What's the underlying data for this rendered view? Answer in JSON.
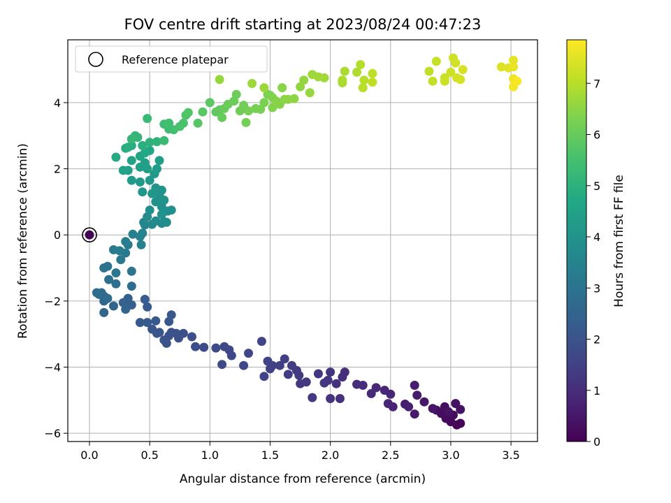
{
  "chart_data": {
    "type": "scatter",
    "title": "FOV centre drift starting at 2023/08/24 00:47:23",
    "xlabel": "Angular distance from reference (arcmin)",
    "ylabel": "Rotation from reference (arcmin)",
    "xlim": [
      -0.18,
      3.72
    ],
    "ylim": [
      -6.25,
      5.9
    ],
    "xticks": [
      "0.0",
      "0.5",
      "1.0",
      "1.5",
      "2.0",
      "2.5",
      "3.0",
      "3.5"
    ],
    "xtick_values": [
      0,
      0.5,
      1.0,
      1.5,
      2.0,
      2.5,
      3.0,
      3.5
    ],
    "yticks": [
      "−6",
      "−4",
      "−2",
      "0",
      "2",
      "4"
    ],
    "ytick_values": [
      -6,
      -4,
      -2,
      0,
      2,
      4
    ],
    "grid": true,
    "legend": {
      "position": "top-left",
      "label": "Reference platepar"
    },
    "colorbar": {
      "label": "Hours from first FF file",
      "range": [
        0,
        7.85
      ],
      "ticks": [
        "0",
        "1",
        "2",
        "3",
        "4",
        "5",
        "6",
        "7"
      ],
      "tick_values": [
        0,
        1,
        2,
        3,
        4,
        5,
        6,
        7
      ],
      "colormap": "viridis"
    },
    "reference_point": {
      "x": 0.0,
      "y": 0.0
    },
    "series": [
      {
        "points": [
          [
            0.0,
            0.0,
            0.0
          ],
          [
            3.05,
            -5.75,
            0.1
          ],
          [
            3.08,
            -5.7,
            0.12
          ],
          [
            3.0,
            -5.65,
            0.15
          ],
          [
            2.96,
            -5.55,
            0.2
          ],
          [
            3.02,
            -5.45,
            0.22
          ],
          [
            2.92,
            -5.4,
            0.25
          ],
          [
            2.88,
            -5.3,
            0.3
          ],
          [
            2.95,
            -5.2,
            0.32
          ],
          [
            3.04,
            -5.1,
            0.35
          ],
          [
            3.08,
            -5.28,
            0.38
          ],
          [
            2.98,
            -5.35,
            0.4
          ],
          [
            2.85,
            -5.25,
            0.45
          ],
          [
            2.78,
            -5.05,
            0.5
          ],
          [
            2.7,
            -5.42,
            0.55
          ],
          [
            2.72,
            -4.85,
            0.6
          ],
          [
            2.7,
            -4.55,
            0.62
          ],
          [
            2.62,
            -5.12,
            0.65
          ],
          [
            2.65,
            -5.2,
            0.7
          ],
          [
            2.52,
            -5.2,
            0.75
          ],
          [
            2.5,
            -4.82,
            0.8
          ],
          [
            2.48,
            -5.1,
            0.82
          ],
          [
            2.45,
            -4.7,
            0.85
          ],
          [
            2.38,
            -4.62,
            0.9
          ],
          [
            2.34,
            -4.8,
            0.95
          ],
          [
            2.27,
            -4.55,
            1.0
          ],
          [
            2.22,
            -4.52,
            1.02
          ],
          [
            2.12,
            -4.15,
            1.05
          ],
          [
            2.1,
            -4.3,
            1.08
          ],
          [
            2.08,
            -4.95,
            1.1
          ],
          [
            2.05,
            -4.5,
            1.12
          ],
          [
            2.0,
            -4.95,
            1.15
          ],
          [
            2.0,
            -4.15,
            1.18
          ],
          [
            1.98,
            -4.4,
            1.2
          ],
          [
            1.95,
            -4.48,
            1.22
          ],
          [
            1.9,
            -4.2,
            1.25
          ],
          [
            1.85,
            -4.92,
            1.28
          ],
          [
            1.8,
            -4.45,
            1.3
          ],
          [
            1.75,
            -4.5,
            1.32
          ],
          [
            1.74,
            -4.25,
            1.35
          ],
          [
            1.72,
            -4.1,
            1.38
          ],
          [
            1.68,
            -3.95,
            1.4
          ],
          [
            1.65,
            -4.22,
            1.42
          ],
          [
            1.62,
            -3.75,
            1.45
          ],
          [
            1.58,
            -3.95,
            1.48
          ],
          [
            1.52,
            -3.95,
            1.5
          ],
          [
            1.5,
            -4.05,
            1.52
          ],
          [
            1.48,
            -3.82,
            1.55
          ],
          [
            1.45,
            -4.28,
            1.58
          ],
          [
            1.43,
            -3.22,
            1.6
          ],
          [
            1.32,
            -3.58,
            1.62
          ],
          [
            1.28,
            -3.95,
            1.65
          ],
          [
            1.18,
            -3.65,
            1.68
          ],
          [
            1.16,
            -3.48,
            1.7
          ],
          [
            1.12,
            -3.38,
            1.72
          ],
          [
            1.1,
            -3.92,
            1.75
          ],
          [
            1.05,
            -3.42,
            1.78
          ],
          [
            0.95,
            -3.4,
            1.8
          ],
          [
            0.88,
            -3.38,
            1.82
          ],
          [
            0.85,
            -3.08,
            1.85
          ],
          [
            0.78,
            -2.98,
            1.88
          ],
          [
            0.74,
            -3.12,
            1.9
          ],
          [
            0.72,
            -2.98,
            1.92
          ],
          [
            0.68,
            -2.95,
            1.95
          ],
          [
            0.66,
            -3.05,
            1.98
          ],
          [
            0.64,
            -3.28,
            2.0
          ],
          [
            0.62,
            -3.18,
            2.02
          ],
          [
            0.58,
            -2.95,
            2.05
          ],
          [
            0.56,
            -2.98,
            2.08
          ],
          [
            0.52,
            -2.85,
            2.1
          ],
          [
            0.68,
            -2.42,
            2.12
          ],
          [
            0.66,
            -2.62,
            2.15
          ],
          [
            0.55,
            -2.6,
            2.18
          ],
          [
            0.48,
            -2.65,
            2.2
          ],
          [
            0.42,
            -2.65,
            2.22
          ],
          [
            0.48,
            -2.18,
            2.25
          ],
          [
            0.46,
            -1.95,
            2.3
          ],
          [
            0.35,
            -2.12,
            2.35
          ],
          [
            0.32,
            -1.92,
            2.4
          ],
          [
            0.28,
            -2.05,
            2.45
          ],
          [
            0.3,
            -2.25,
            2.5
          ],
          [
            0.2,
            -2.15,
            2.55
          ],
          [
            0.12,
            -2.35,
            2.6
          ],
          [
            0.12,
            -2.0,
            2.62
          ],
          [
            0.08,
            -1.8,
            2.65
          ],
          [
            0.1,
            -1.75,
            2.7
          ],
          [
            0.12,
            -1.85,
            2.72
          ],
          [
            0.15,
            -1.92,
            2.75
          ],
          [
            0.06,
            -1.75,
            2.78
          ],
          [
            0.35,
            -1.55,
            2.8
          ],
          [
            0.22,
            -1.48,
            2.85
          ],
          [
            0.16,
            -1.35,
            2.9
          ],
          [
            0.15,
            -0.95,
            2.95
          ],
          [
            0.12,
            -1.0,
            2.98
          ],
          [
            0.35,
            -1.1,
            3.0
          ],
          [
            0.22,
            -1.15,
            3.05
          ],
          [
            0.26,
            -0.75,
            3.1
          ],
          [
            0.3,
            -0.55,
            3.15
          ],
          [
            0.2,
            -0.45,
            3.2
          ],
          [
            0.25,
            -0.48,
            3.22
          ],
          [
            0.32,
            -0.3,
            3.25
          ],
          [
            0.3,
            -0.2,
            3.3
          ],
          [
            0.36,
            0.02,
            3.35
          ],
          [
            0.43,
            -0.3,
            3.4
          ],
          [
            0.42,
            -0.05,
            3.45
          ],
          [
            0.44,
            0.05,
            3.5
          ],
          [
            0.46,
            0.3,
            3.55
          ],
          [
            0.45,
            0.38,
            3.6
          ],
          [
            0.52,
            0.32,
            3.65
          ],
          [
            0.48,
            0.55,
            3.7
          ],
          [
            0.55,
            0.42,
            3.72
          ],
          [
            0.6,
            0.35,
            3.75
          ],
          [
            0.62,
            0.4,
            3.78
          ],
          [
            0.64,
            0.38,
            3.8
          ],
          [
            0.65,
            0.72,
            3.82
          ],
          [
            0.68,
            0.75,
            3.85
          ],
          [
            0.6,
            0.85,
            3.88
          ],
          [
            0.5,
            0.75,
            3.9
          ],
          [
            0.55,
            1.0,
            3.92
          ],
          [
            0.6,
            0.62,
            3.95
          ],
          [
            0.62,
            1.05,
            3.98
          ],
          [
            0.58,
            1.2,
            4.0
          ],
          [
            0.6,
            1.35,
            4.02
          ],
          [
            0.55,
            1.42,
            4.05
          ],
          [
            0.52,
            1.25,
            4.08
          ],
          [
            0.44,
            1.3,
            4.1
          ],
          [
            0.5,
            1.65,
            4.15
          ],
          [
            0.42,
            1.6,
            4.2
          ],
          [
            0.35,
            1.65,
            4.25
          ],
          [
            0.54,
            1.85,
            4.28
          ],
          [
            0.56,
            2.0,
            4.3
          ],
          [
            0.58,
            2.25,
            4.35
          ],
          [
            0.48,
            2.0,
            4.38
          ],
          [
            0.46,
            2.18,
            4.4
          ],
          [
            0.42,
            2.05,
            4.42
          ],
          [
            0.32,
            1.95,
            4.45
          ],
          [
            0.28,
            1.95,
            4.5
          ],
          [
            0.35,
            2.25,
            4.55
          ],
          [
            0.42,
            2.38,
            4.6
          ],
          [
            0.5,
            2.55,
            4.65
          ],
          [
            0.46,
            2.48,
            4.7
          ],
          [
            0.22,
            2.35,
            4.75
          ],
          [
            0.3,
            2.62,
            4.8
          ],
          [
            0.35,
            2.7,
            4.85
          ],
          [
            0.32,
            2.65,
            4.9
          ],
          [
            0.44,
            2.7,
            4.95
          ],
          [
            0.5,
            2.8,
            5.0
          ],
          [
            0.56,
            2.82,
            5.05
          ],
          [
            0.4,
            2.95,
            5.1
          ],
          [
            0.38,
            3.0,
            5.15
          ],
          [
            0.35,
            2.9,
            5.2
          ],
          [
            0.48,
            3.52,
            5.25
          ],
          [
            0.62,
            2.85,
            5.3
          ],
          [
            0.66,
            3.2,
            5.35
          ],
          [
            0.62,
            3.35,
            5.4
          ],
          [
            0.66,
            3.38,
            5.45
          ],
          [
            0.7,
            3.18,
            5.5
          ],
          [
            0.75,
            3.28,
            5.55
          ],
          [
            0.78,
            3.38,
            5.6
          ],
          [
            0.8,
            3.62,
            5.65
          ],
          [
            0.82,
            3.7,
            5.7
          ],
          [
            0.9,
            3.38,
            5.75
          ],
          [
            0.94,
            3.72,
            5.8
          ],
          [
            1.0,
            4.0,
            5.85
          ],
          [
            1.05,
            3.72,
            5.9
          ],
          [
            1.08,
            3.78,
            5.95
          ],
          [
            1.1,
            3.55,
            6.0
          ],
          [
            1.12,
            3.82,
            6.02
          ],
          [
            1.15,
            3.95,
            6.05
          ],
          [
            1.2,
            4.05,
            6.08
          ],
          [
            1.22,
            4.25,
            6.1
          ],
          [
            1.25,
            3.75,
            6.12
          ],
          [
            1.28,
            3.92,
            6.15
          ],
          [
            1.3,
            3.4,
            6.18
          ],
          [
            1.32,
            3.75,
            6.2
          ],
          [
            1.38,
            3.82,
            6.22
          ],
          [
            1.42,
            3.8,
            6.25
          ],
          [
            1.45,
            4.0,
            6.28
          ],
          [
            1.48,
            4.25,
            6.3
          ],
          [
            1.5,
            4.22,
            6.32
          ],
          [
            1.52,
            4.15,
            6.35
          ],
          [
            1.52,
            3.85,
            6.38
          ],
          [
            1.55,
            4.05,
            6.4
          ],
          [
            1.58,
            3.95,
            6.42
          ],
          [
            1.6,
            4.45,
            6.45
          ],
          [
            1.62,
            4.1,
            6.48
          ],
          [
            1.65,
            4.1,
            6.5
          ],
          [
            1.7,
            4.12,
            6.52
          ],
          [
            1.75,
            4.48,
            6.55
          ],
          [
            1.78,
            4.68,
            6.58
          ],
          [
            1.83,
            4.3,
            6.6
          ],
          [
            1.08,
            4.7,
            6.62
          ],
          [
            1.35,
            4.58,
            6.65
          ],
          [
            1.45,
            4.45,
            6.68
          ],
          [
            1.85,
            4.85,
            6.7
          ],
          [
            1.9,
            4.78,
            6.72
          ],
          [
            1.95,
            4.75,
            6.75
          ],
          [
            2.1,
            4.6,
            6.8
          ],
          [
            2.12,
            4.95,
            6.85
          ],
          [
            2.1,
            4.68,
            6.88
          ],
          [
            2.22,
            4.92,
            6.9
          ],
          [
            2.25,
            5.15,
            6.95
          ],
          [
            2.28,
            4.68,
            7.0
          ],
          [
            2.27,
            4.45,
            7.02
          ],
          [
            2.35,
            4.88,
            7.05
          ],
          [
            2.35,
            4.62,
            7.08
          ],
          [
            2.82,
            4.95,
            7.1
          ],
          [
            2.85,
            4.65,
            7.15
          ],
          [
            2.88,
            5.25,
            7.18
          ],
          [
            2.95,
            4.75,
            7.2
          ],
          [
            2.95,
            4.65,
            7.22
          ],
          [
            3.0,
            4.92,
            7.25
          ],
          [
            3.02,
            5.35,
            7.28
          ],
          [
            3.04,
            5.2,
            7.3
          ],
          [
            3.05,
            4.75,
            7.32
          ],
          [
            3.08,
            4.7,
            7.35
          ],
          [
            3.1,
            5.0,
            7.38
          ],
          [
            3.42,
            5.08,
            7.45
          ],
          [
            3.48,
            5.05,
            7.5
          ],
          [
            3.52,
            5.28,
            7.55
          ],
          [
            3.52,
            5.08,
            7.6
          ],
          [
            3.52,
            4.72,
            7.65
          ],
          [
            3.54,
            4.65,
            7.7
          ],
          [
            3.52,
            4.48,
            7.75
          ],
          [
            3.55,
            4.65,
            7.8
          ]
        ]
      }
    ]
  }
}
